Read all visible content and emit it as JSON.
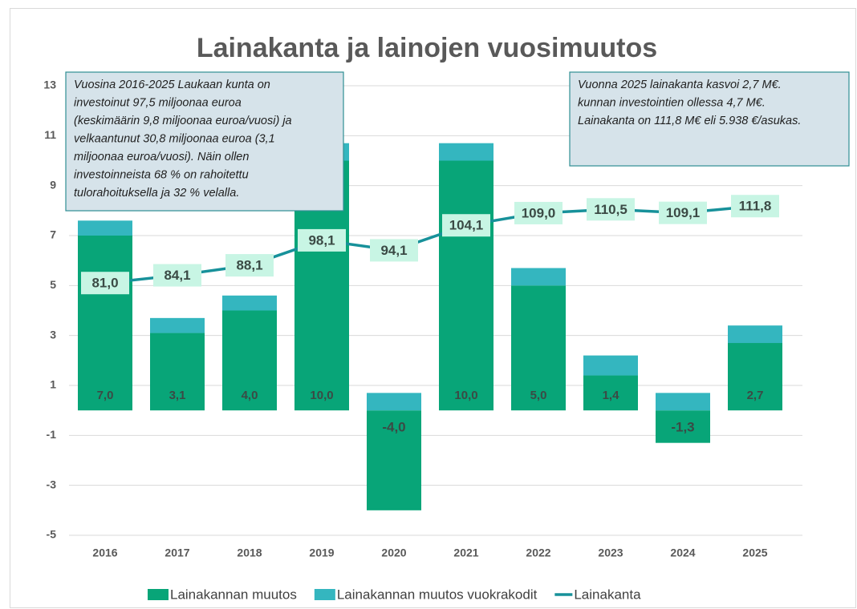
{
  "chart_data": {
    "type": "bar_line",
    "title": "Lainakanta ja lainojen vuosimuutos",
    "categories": [
      "2016",
      "2017",
      "2018",
      "2019",
      "2020",
      "2021",
      "2022",
      "2023",
      "2024",
      "2025"
    ],
    "series": [
      {
        "name": "Lainakannan muutos",
        "color": "#08a578",
        "values": [
          7.0,
          3.1,
          4.0,
          10.0,
          -4.0,
          10.0,
          5.0,
          1.4,
          -1.3,
          2.7
        ],
        "value_labels": [
          "7,0",
          "3,1",
          "4,0",
          "10,0",
          "-4,0",
          "10,0",
          "5,0",
          "1,4",
          "-1,3",
          "2,7"
        ]
      },
      {
        "name": "Lainakannan muutos vuokrakodit",
        "color": "#34b6bf",
        "values": [
          0.6,
          0.6,
          0.6,
          0.7,
          0.7,
          0.7,
          0.7,
          0.8,
          0.7,
          0.7
        ]
      },
      {
        "name": "Lainakanta",
        "color": "#17919a",
        "axis": "y2",
        "values": [
          81.0,
          84.1,
          88.1,
          98.1,
          94.1,
          104.1,
          109.0,
          110.5,
          109.1,
          111.8
        ],
        "value_labels": [
          "81,0",
          "84,1",
          "88,1",
          "98,1",
          "94,1",
          "104,1",
          "109,0",
          "110,5",
          "109,1",
          "111,8"
        ]
      }
    ],
    "ylim": [
      -5,
      13
    ],
    "yticks": [
      -5,
      -3,
      -1,
      1,
      3,
      5,
      7,
      9,
      11,
      13
    ],
    "y2lim": [
      -20,
      160
    ],
    "grid": true,
    "legend": "bottom",
    "annotations": [
      {
        "lines": [
          "Vuosina 2016-2025 Laukaan kunta on",
          "investoinut 97,5 miljoonaa euroa",
          "(keskimäärin 9,8 miljoonaa euroa/vuosi) ja",
          "velkaantunut 30,8 miljoonaa euroa (3,1",
          "miljoonaa euroa/vuosi). Näin ollen",
          "investoinneista 68 % on rahoitettu",
          "tulorahoituksella ja 32 % velalla."
        ]
      },
      {
        "lines": [
          "Vuonna 2025 lainakanta kasvoi 2,7 M€.",
          "kunnan investointien ollessa 4,7 M€.",
          "Lainakanta on 111,8 M€ eli 5.938 €/asukas."
        ]
      }
    ]
  }
}
